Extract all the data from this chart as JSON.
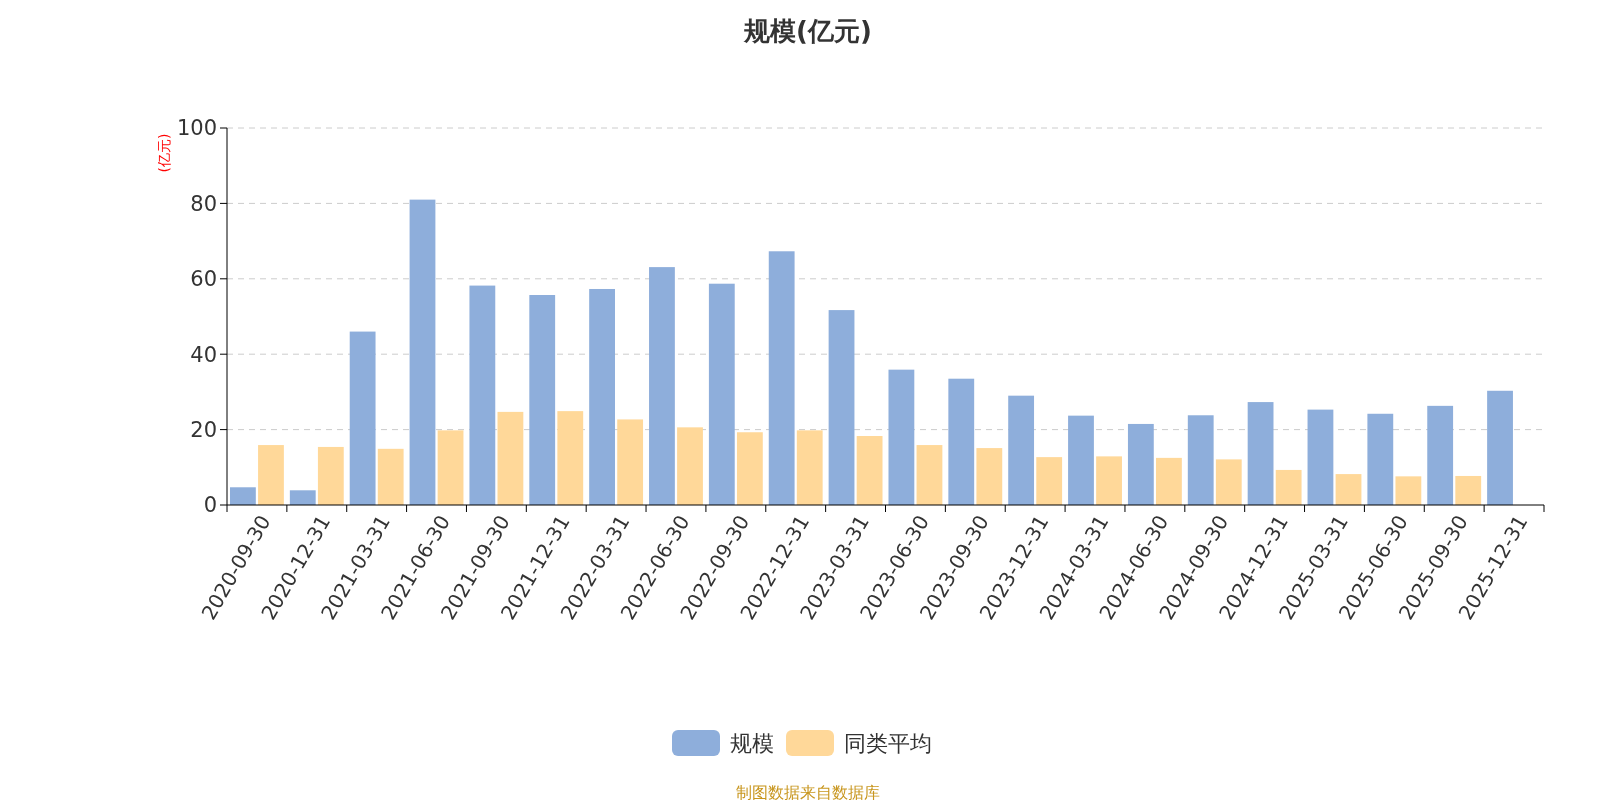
{
  "chart_data": {
    "type": "bar",
    "title": "规模(亿元)",
    "ylabel": "(亿元)",
    "categories": [
      "2020-09-30",
      "2020-12-31",
      "2021-03-31",
      "2021-06-30",
      "2021-09-30",
      "2021-12-31",
      "2022-03-31",
      "2022-06-30",
      "2022-09-30",
      "2022-12-31",
      "2023-03-31",
      "2023-06-30",
      "2023-09-30",
      "2023-12-31",
      "2024-03-31",
      "2024-06-30",
      "2024-09-30",
      "2024-12-31",
      "2025-03-31",
      "2025-06-30",
      "2025-09-30",
      "2025-12-31"
    ],
    "series": [
      {
        "name": "规模",
        "color": "#8eaedb",
        "values": [
          4.7,
          3.9,
          46,
          81,
          58.2,
          55.7,
          57.3,
          63.1,
          58.7,
          67.3,
          51.7,
          35.9,
          33.5,
          29,
          23.7,
          21.5,
          23.8,
          27.3,
          25.3,
          24.2,
          26.3,
          30.3
        ]
      },
      {
        "name": "同类平均",
        "color": "#ffd899",
        "values": [
          15.9,
          15.4,
          14.9,
          19.8,
          24.7,
          24.9,
          22.7,
          20.6,
          19.3,
          19.8,
          18.3,
          15.9,
          15.1,
          12.7,
          12.9,
          12.5,
          12.1,
          9.3,
          8.2,
          7.6,
          7.7,
          null
        ]
      }
    ],
    "ylim": [
      0,
      100
    ],
    "yticks": [
      0,
      20,
      40,
      60,
      80,
      100
    ],
    "grid": "y",
    "legend": "bottom",
    "annotations": [
      "制图数据来自数据库"
    ]
  }
}
